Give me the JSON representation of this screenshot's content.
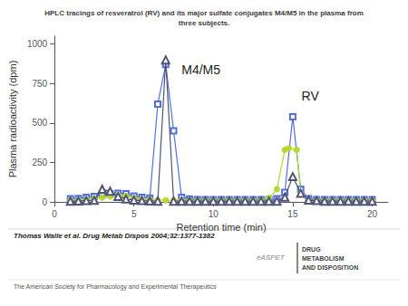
{
  "chart_data": {
    "type": "line",
    "title": "HPLC tracings of resveratrol (RV) and its major sulfate conjugates M4/M5 in the plasma from\nthree subjects.",
    "x_label": "Retention time (min)",
    "y_label": "Plasma radioactivity (dpm)",
    "xlim": [
      0,
      21
    ],
    "ylim": [
      0,
      1050
    ],
    "xticks": [
      0,
      5,
      10,
      15,
      20
    ],
    "yticks": [
      0,
      250,
      500,
      750,
      1000
    ],
    "grid": false,
    "series": [
      {
        "marker": "open square",
        "x": [
          1,
          1.5,
          2,
          2.5,
          3,
          3.5,
          4,
          4.5,
          5,
          5.5,
          6,
          6.5,
          7,
          7.5,
          8,
          8.5,
          9,
          9.5,
          10,
          10.5,
          11,
          11.5,
          12,
          12.5,
          13,
          13.5,
          14,
          14.5,
          15,
          15.5,
          16,
          16.5,
          17,
          17.5,
          18,
          18.5,
          19,
          19.5,
          20
        ],
        "values": [
          20,
          22,
          28,
          35,
          45,
          50,
          55,
          52,
          38,
          28,
          25,
          620,
          870,
          450,
          28,
          18,
          15,
          15,
          15,
          15,
          15,
          15,
          15,
          15,
          15,
          15,
          20,
          60,
          540,
          80,
          20,
          15,
          15,
          15,
          15,
          15,
          15,
          15,
          15
        ]
      },
      {
        "marker": "filled circle",
        "x": [
          1,
          1.5,
          2,
          2.5,
          3,
          3.5,
          4,
          4.5,
          5,
          5.5,
          6,
          6.5,
          7,
          7.5,
          8,
          8.5,
          9,
          9.5,
          10,
          10.5,
          11,
          11.5,
          12,
          12.5,
          13,
          13.5,
          14,
          14.5,
          14.75,
          15.25,
          15.5,
          16,
          16.5,
          17,
          17.5,
          18,
          18.5,
          19,
          19.5,
          20
        ],
        "values": [
          10,
          12,
          15,
          20,
          28,
          35,
          42,
          38,
          25,
          18,
          15,
          12,
          10,
          10,
          10,
          10,
          10,
          10,
          10,
          10,
          10,
          10,
          10,
          10,
          10,
          25,
          80,
          330,
          340,
          330,
          55,
          12,
          10,
          10,
          10,
          10,
          10,
          10,
          10,
          10
        ]
      },
      {
        "marker": "open triangle",
        "x": [
          1,
          1.5,
          2,
          2.5,
          3,
          3.5,
          4,
          4.5,
          5,
          5.5,
          6,
          6.5,
          7,
          7.5,
          8,
          8.5,
          9,
          9.5,
          10,
          10.5,
          11,
          11.5,
          12,
          12.5,
          13,
          13.5,
          14,
          14.5,
          15,
          15.5,
          16,
          16.5,
          17,
          17.5,
          18,
          18.5,
          19,
          19.5,
          20
        ],
        "values": [
          5,
          6,
          8,
          10,
          80,
          68,
          35,
          18,
          12,
          8,
          6,
          5,
          900,
          5,
          5,
          5,
          5,
          5,
          5,
          5,
          5,
          5,
          5,
          5,
          5,
          5,
          5,
          30,
          160,
          55,
          12,
          8,
          5,
          5,
          5,
          5,
          5,
          5,
          5
        ]
      }
    ],
    "annotations": [
      {
        "text": "M4/M5",
        "x": 8.0,
        "y": 800
      },
      {
        "text": "RV",
        "x": 15.55,
        "y": 630
      }
    ],
    "citation": "Thomas Walle et al. Drug Metab Dispos 2004;32:1377-1382",
    "publisher_label": "éASPET",
    "publisher": "DRUG\nMETABOLISM\nAND DISPOSITION",
    "footer": "The American Society for Pharmacology and Experimental Therapeutics"
  }
}
